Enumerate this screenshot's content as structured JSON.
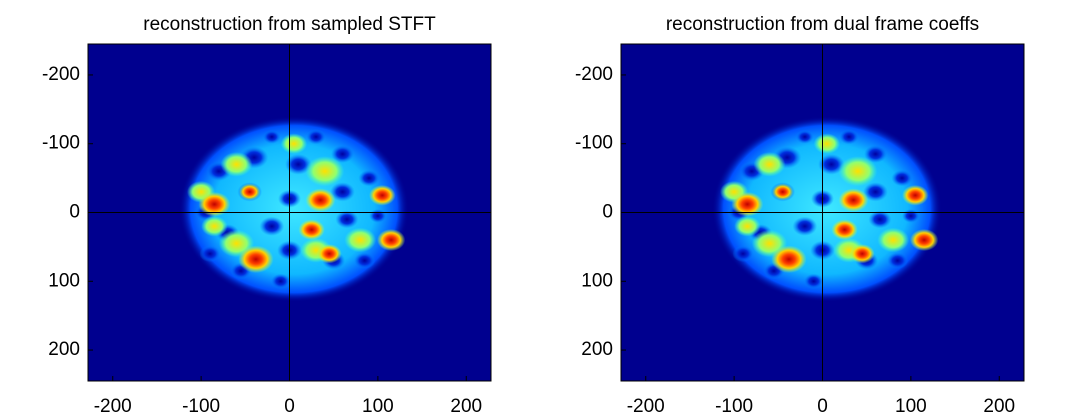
{
  "chart_data": [
    {
      "type": "image",
      "title": "reconstruction from sampled STFT",
      "colormap": "jet",
      "xlim": [
        -228,
        228
      ],
      "ylim": [
        -245,
        245
      ],
      "y_reversed": true,
      "xticks": [
        -200,
        -100,
        0,
        100,
        200
      ],
      "yticks": [
        -200,
        -100,
        0,
        100,
        200
      ]
    },
    {
      "type": "image",
      "title": "reconstruction from dual frame coeffs",
      "colormap": "jet",
      "xlim": [
        -228,
        228
      ],
      "ylim": [
        -245,
        245
      ],
      "y_reversed": true,
      "xticks": [
        -200,
        -100,
        0,
        100,
        200
      ],
      "yticks": [
        -200,
        -100,
        0,
        100,
        200
      ]
    }
  ]
}
